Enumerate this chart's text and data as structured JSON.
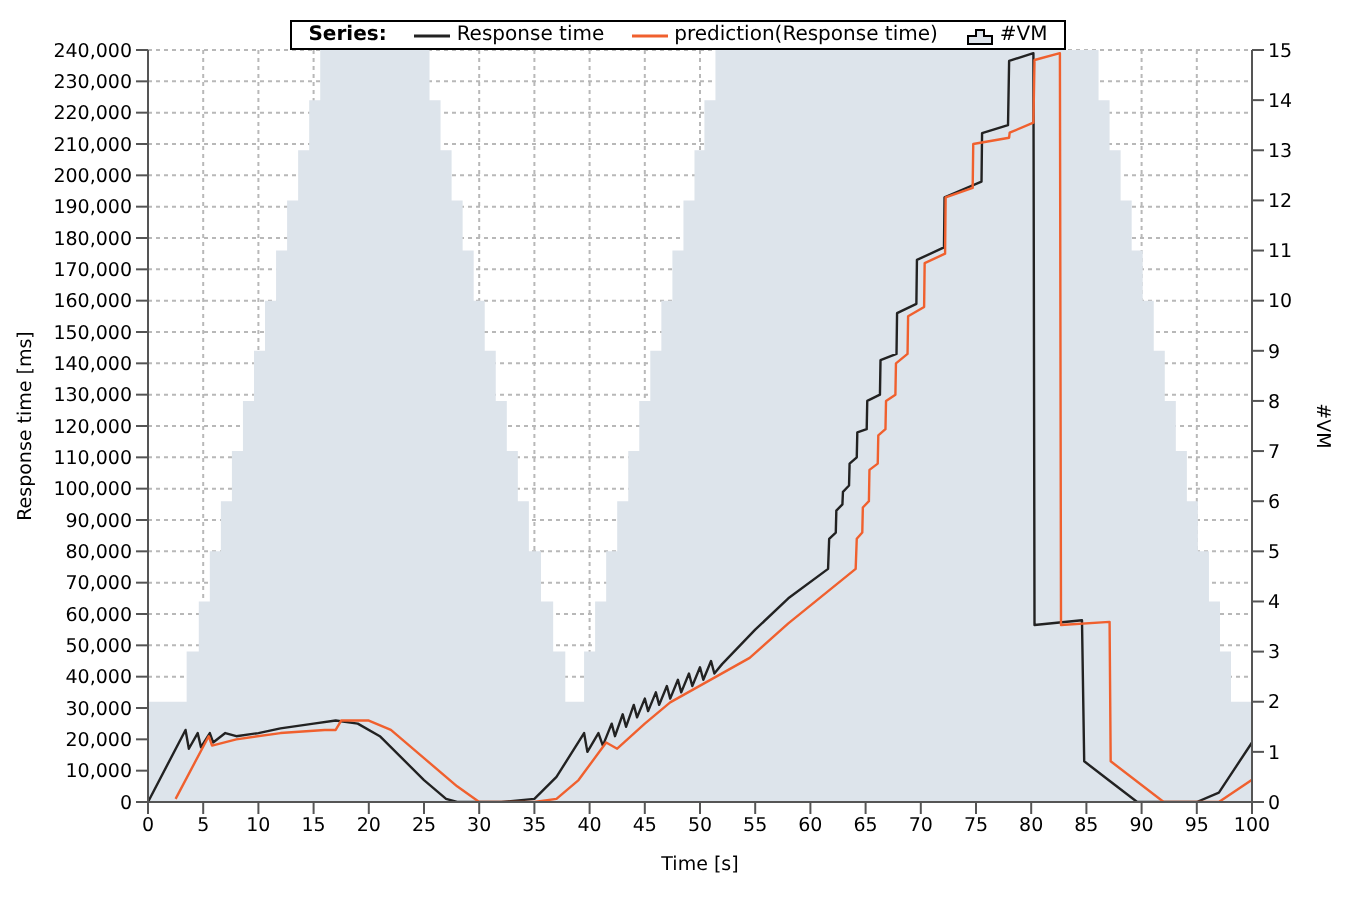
{
  "chart_data": {
    "type": "line",
    "xlabel": "Time [s]",
    "ylabel": "Response time [ms]",
    "y2label": "#VM",
    "legend_title": "Series:",
    "legend": "top",
    "grid": true,
    "marker": "none",
    "line_style": "solid",
    "xlim": [
      0,
      100
    ],
    "xticks": [
      0,
      5,
      10,
      15,
      20,
      25,
      30,
      35,
      40,
      45,
      50,
      55,
      60,
      65,
      70,
      75,
      80,
      85,
      90,
      95,
      100
    ],
    "ylim": [
      0,
      240000
    ],
    "yticks": [
      0,
      {
        "value": 10000,
        "label": "10,000"
      },
      {
        "value": 20000,
        "label": "20,000"
      },
      {
        "value": 30000,
        "label": "30,000"
      },
      {
        "value": 40000,
        "label": "40,000"
      },
      {
        "value": 50000,
        "label": "50,000"
      },
      {
        "value": 60000,
        "label": "60,000"
      },
      {
        "value": 70000,
        "label": "70,000"
      },
      {
        "value": 80000,
        "label": "80,000"
      },
      {
        "value": 90000,
        "label": "90,000"
      },
      {
        "value": 100000,
        "label": "100,000"
      },
      {
        "value": 110000,
        "label": "110,000"
      },
      {
        "value": 120000,
        "label": "120,000"
      },
      {
        "value": 130000,
        "label": "130,000"
      },
      {
        "value": 140000,
        "label": "140,000"
      },
      {
        "value": 150000,
        "label": "150,000"
      },
      {
        "value": 160000,
        "label": "160,000"
      },
      {
        "value": 170000,
        "label": "170,000"
      },
      {
        "value": 180000,
        "label": "180,000"
      },
      {
        "value": 190000,
        "label": "190,000"
      },
      {
        "value": 200000,
        "label": "200,000"
      },
      {
        "value": 210000,
        "label": "210,000"
      },
      {
        "value": 220000,
        "label": "220,000"
      },
      {
        "value": 230000,
        "label": "230,000"
      },
      {
        "value": 240000,
        "label": "240,000"
      }
    ],
    "y2lim": [
      0,
      15
    ],
    "y2ticks": [
      0,
      1,
      2,
      3,
      4,
      5,
      6,
      7,
      8,
      9,
      10,
      11,
      12,
      13,
      14,
      15
    ],
    "series": [
      {
        "name": "Response time",
        "color": "#222222",
        "x": [
          0,
          3.4,
          3.7,
          4.5,
          4.8,
          5.6,
          5.9,
          7,
          8,
          10,
          12,
          15,
          17,
          19,
          21,
          23,
          25,
          27,
          28,
          32,
          35,
          37,
          39.5,
          39.8,
          40.8,
          41.2,
          42,
          42.3,
          43,
          43.3,
          44,
          44.3,
          45,
          45.3,
          46,
          46.3,
          47,
          47.3,
          48,
          48.3,
          49,
          49.3,
          50,
          50.3,
          51,
          51.3,
          52,
          55,
          58,
          61.6,
          61.7,
          62.3,
          62.35,
          62.9,
          62.95,
          63.5,
          63.55,
          64.2,
          64.25,
          65.1,
          65.15,
          66.3,
          66.35,
          67.8,
          67.85,
          69.6,
          69.65,
          72.1,
          72.15,
          75.5,
          75.55,
          77.9,
          78,
          80.2,
          80.3,
          84.6,
          84.8,
          87,
          89.6,
          95,
          97,
          100
        ],
        "values": [
          0,
          23000,
          17000,
          22000,
          17500,
          22000,
          19000,
          22000,
          21000,
          22000,
          23500,
          25000,
          26000,
          25000,
          21000,
          14000,
          7000,
          1000,
          0,
          0,
          1000,
          8000,
          22000,
          16000,
          22000,
          18000,
          25000,
          21000,
          28000,
          24000,
          31000,
          27000,
          33000,
          29000,
          35000,
          31000,
          37000,
          33000,
          39000,
          35000,
          41000,
          37000,
          43000,
          39000,
          45000,
          41000,
          44000,
          55000,
          65000,
          74400,
          84000,
          86000,
          93000,
          95000,
          99000,
          101000,
          108000,
          110000,
          118000,
          119000,
          128000,
          130000,
          141000,
          143000,
          156000,
          159000,
          173000,
          177000,
          193000,
          198000,
          213500,
          216000,
          236500,
          239000,
          56500,
          58000,
          13000,
          7000,
          0,
          0,
          3000,
          19000
        ]
      },
      {
        "name": "prediction(Response time)",
        "color": "#f0602e",
        "x": [
          2.5,
          5.5,
          5.8,
          8,
          12,
          16,
          17,
          17.5,
          20,
          22,
          25,
          28,
          30,
          35,
          37,
          39,
          41.5,
          42.5,
          45,
          47.3,
          54.5,
          58,
          64.1,
          64.2,
          64.7,
          64.75,
          65.3,
          65.35,
          66.1,
          66.15,
          66.8,
          66.85,
          67.7,
          67.75,
          68.8,
          68.85,
          70.3,
          70.35,
          72.2,
          72.25,
          74.7,
          74.75,
          78,
          78.05,
          80.2,
          80.3,
          82.6,
          82.7,
          87.1,
          87.2,
          92,
          97,
          100
        ],
        "values": [
          1000,
          21000,
          18000,
          20000,
          22000,
          23000,
          23000,
          26000,
          26000,
          23000,
          14000,
          5000,
          0,
          0,
          1000,
          7000,
          19000,
          17000,
          25000,
          31800,
          46000,
          57000,
          74400,
          84000,
          86000,
          94000,
          96000,
          106000,
          108000,
          117000,
          119000,
          128000,
          130000,
          140000,
          143000,
          155000,
          158000,
          172000,
          175000,
          193000,
          196000,
          210000,
          212000,
          213600,
          216800,
          236800,
          239000,
          56500,
          57500,
          13000,
          0,
          0,
          7100
        ]
      },
      {
        "name": "#VM",
        "type": "area",
        "axis": "y2",
        "color": "#dde4eb",
        "x": [
          0,
          3.5,
          4.6,
          5.6,
          6.6,
          7.6,
          8.6,
          9.6,
          10.6,
          11.6,
          12.6,
          13.6,
          14.6,
          15.6,
          25.5,
          26.5,
          27.5,
          28.5,
          29.5,
          30.5,
          31.5,
          32.5,
          33.5,
          34.5,
          35.6,
          36.7,
          37.8,
          39.5,
          40.5,
          41.5,
          42.5,
          43.5,
          44.5,
          45.5,
          46.5,
          47.5,
          48.5,
          49.5,
          50.4,
          51.4,
          86.1,
          87.1,
          88.1,
          89.1,
          90.1,
          91.1,
          92.1,
          93.1,
          94.1,
          95.1,
          96.1,
          97.1,
          98.1,
          100
        ],
        "values": [
          2,
          3,
          4,
          5,
          6,
          7,
          8,
          9,
          10,
          11,
          12,
          13,
          14,
          15,
          14,
          13,
          12,
          11,
          10,
          9,
          8,
          7,
          6,
          5,
          4,
          3,
          2,
          3,
          4,
          5,
          6,
          7,
          8,
          9,
          10,
          11,
          12,
          13,
          14,
          15,
          14,
          13,
          12,
          11,
          10,
          9,
          8,
          7,
          6,
          5,
          4,
          3,
          2,
          2
        ]
      }
    ]
  }
}
